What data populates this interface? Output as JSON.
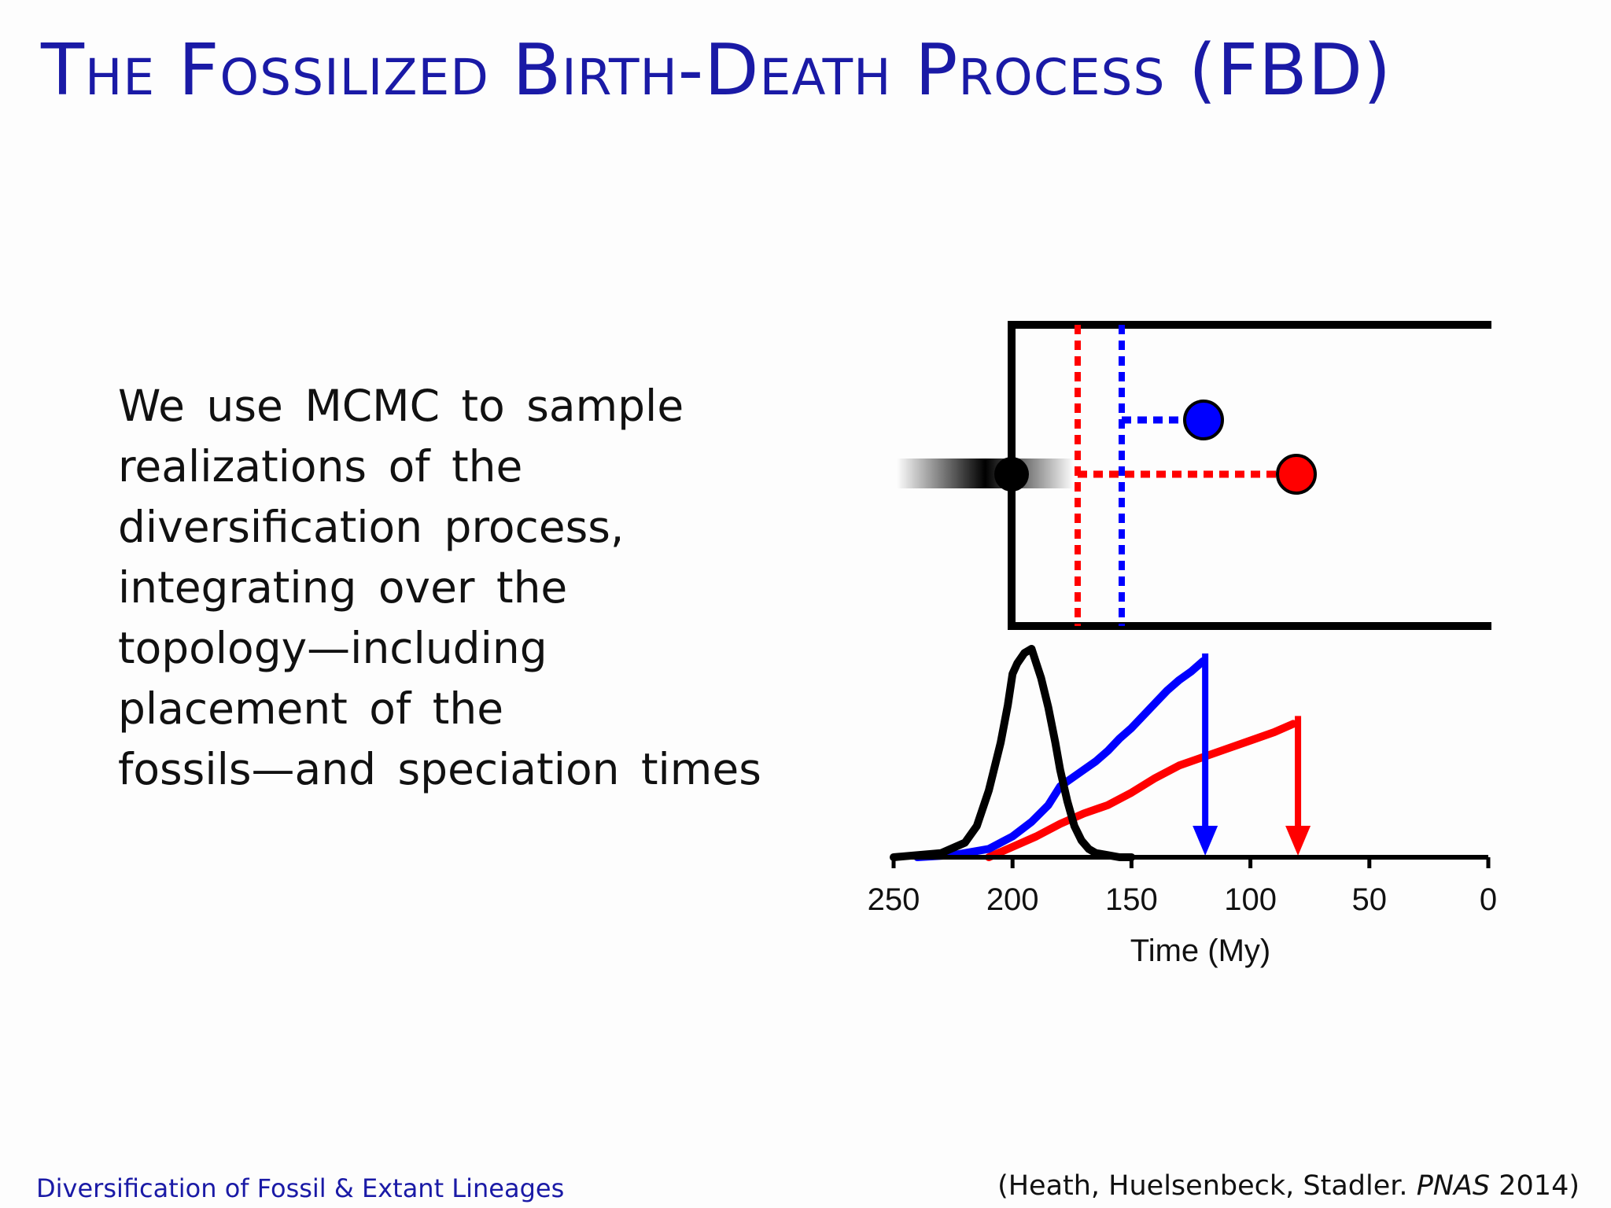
{
  "slide": {
    "title": "The Fossilized Birth-Death Process (FBD)",
    "body_lines": [
      "We use MCMC to sample",
      "realizations of the",
      "diversification process,",
      "integrating over the",
      "topology—including",
      "placement of the",
      "fossils—and speciation times"
    ],
    "footer_left": "Diversification of Fossil & Extant Lineages",
    "citation": {
      "prefix": "(Heath, Huelsenbeck, Stadler. ",
      "journal": "PNAS",
      "suffix": " 2014)"
    }
  },
  "colors": {
    "title": "#1a1aa6",
    "blue_fossil": "#0000ff",
    "red_fossil": "#ff0000",
    "root": "#000000"
  },
  "chart_data": {
    "type": "line",
    "xlabel": "Time (My)",
    "xlim": [
      250,
      0
    ],
    "x_ticks": [
      250,
      200,
      150,
      100,
      50,
      0
    ],
    "tick_labels": [
      "250",
      "200",
      "150",
      "100",
      "50",
      "0"
    ],
    "series": [
      {
        "color": "#000000",
        "x": [
          250,
          240,
          230,
          220,
          215,
          210,
          205,
          202,
          200,
          198,
          195,
          192,
          190,
          188,
          185,
          182,
          180,
          177,
          174,
          171,
          168,
          165,
          160,
          155,
          150
        ],
        "y": [
          0,
          0.01,
          0.02,
          0.07,
          0.15,
          0.32,
          0.55,
          0.73,
          0.88,
          0.93,
          0.98,
          1.0,
          0.93,
          0.86,
          0.72,
          0.55,
          0.42,
          0.27,
          0.15,
          0.08,
          0.04,
          0.02,
          0.01,
          0.0,
          0.0
        ]
      },
      {
        "color": "#0000ff",
        "x": [
          240,
          225,
          210,
          200,
          192,
          185,
          180,
          175,
          170,
          165,
          160,
          155,
          150,
          145,
          140,
          135,
          130,
          125,
          120
        ],
        "y": [
          0,
          0.01,
          0.04,
          0.1,
          0.17,
          0.25,
          0.34,
          0.38,
          0.42,
          0.46,
          0.51,
          0.57,
          0.62,
          0.68,
          0.74,
          0.8,
          0.85,
          0.89,
          0.94
        ]
      },
      {
        "color": "#ff0000",
        "x": [
          210,
          200,
          190,
          180,
          170,
          160,
          150,
          140,
          130,
          120,
          110,
          100,
          90,
          82
        ],
        "y": [
          0,
          0.05,
          0.1,
          0.16,
          0.21,
          0.25,
          0.31,
          0.38,
          0.44,
          0.48,
          0.52,
          0.56,
          0.6,
          0.64
        ]
      }
    ],
    "arrows": [
      {
        "color": "#0000ff",
        "x": 119
      },
      {
        "color": "#ff0000",
        "x": 80
      }
    ],
    "tree": {
      "root_age": 200,
      "blue_fossil": {
        "stem_age": 156,
        "fossil_age": 119
      },
      "red_fossil": {
        "stem_age": 174,
        "fossil_age": 80
      }
    }
  }
}
